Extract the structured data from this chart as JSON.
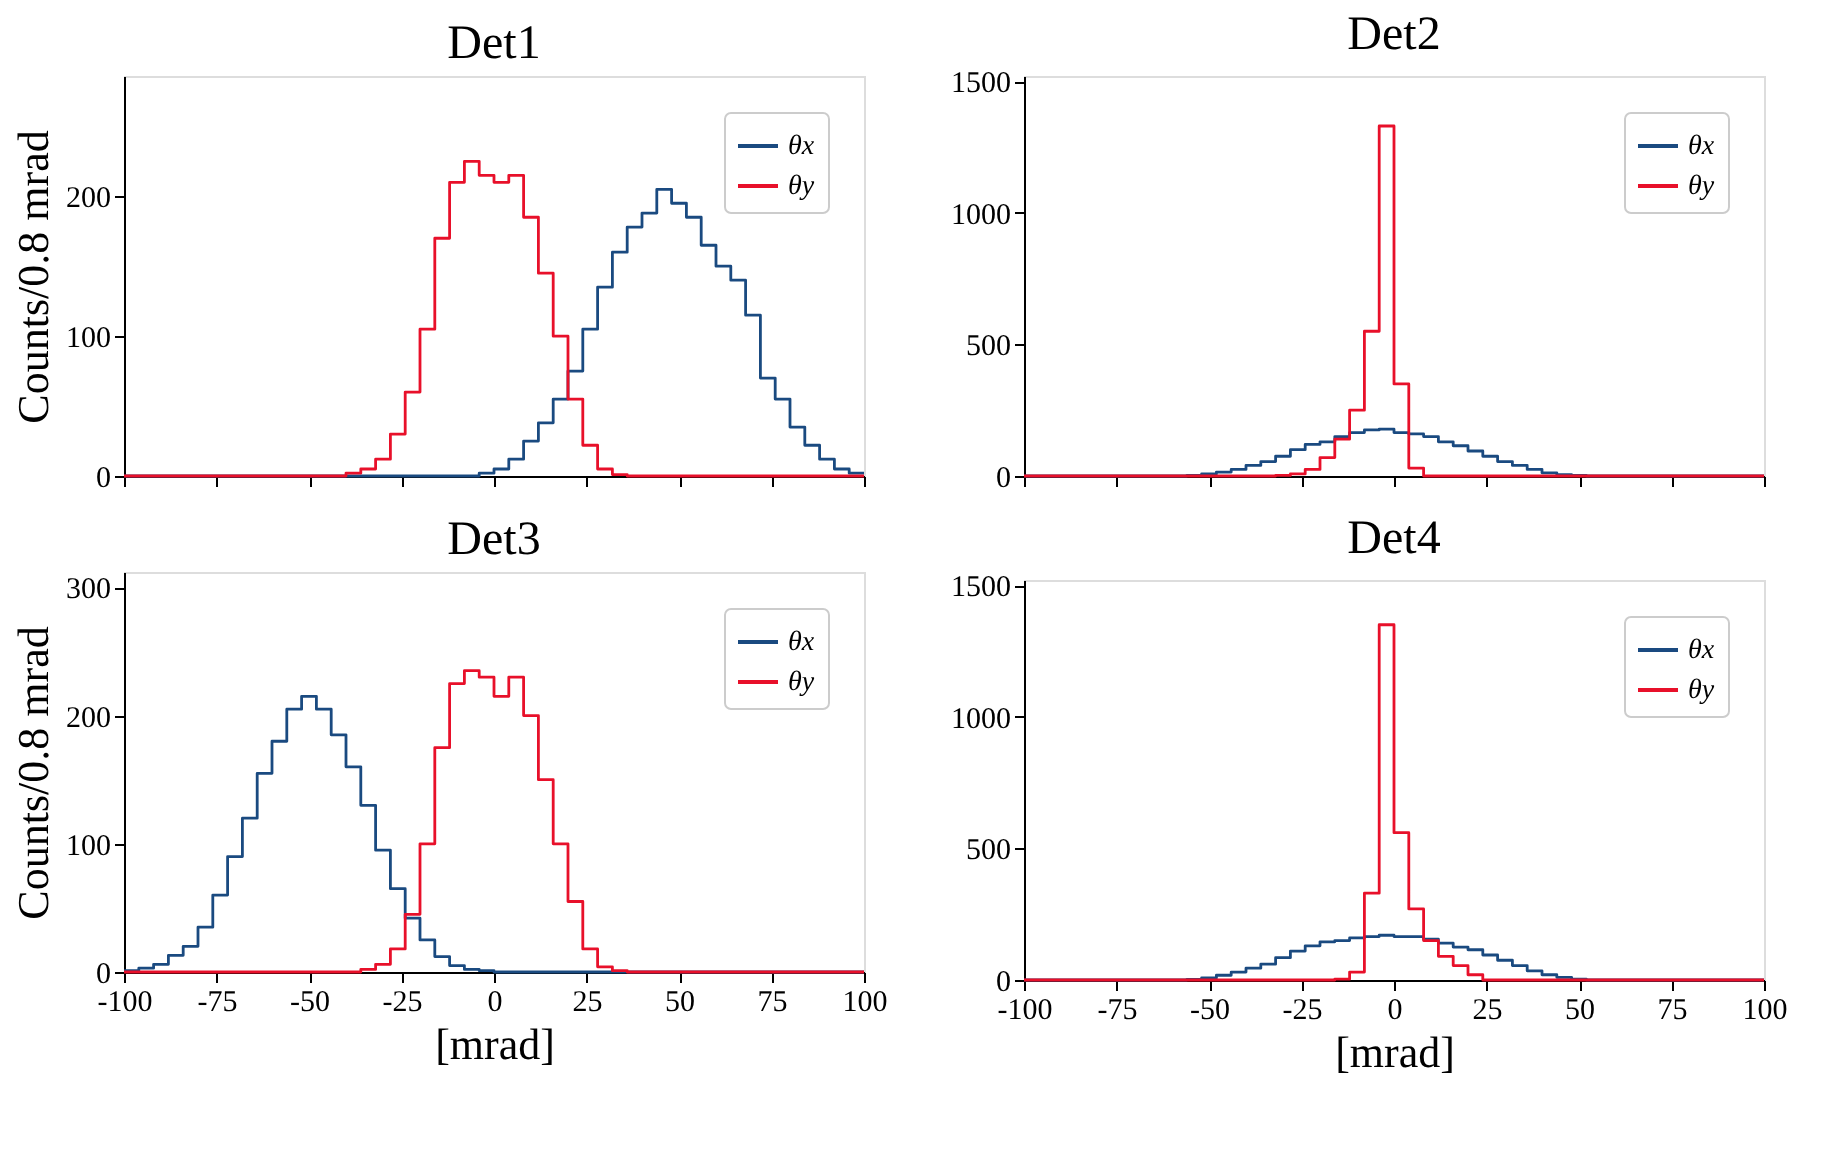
{
  "chart_data": [
    {
      "type": "histogram",
      "title": "Det1",
      "ylabel": "Counts/0.8 mrad",
      "xlim": [
        -100,
        100
      ],
      "xticks": [
        -100,
        -75,
        -50,
        -25,
        0,
        25,
        50,
        75,
        100
      ],
      "ylim": [
        0,
        286
      ],
      "yticks": [
        0,
        100,
        200
      ],
      "tick_labels": "y",
      "legend": "top right",
      "grid": false,
      "bins": [
        -100,
        -96,
        -92,
        -88,
        -84,
        -80,
        -76,
        -72,
        -68,
        -64,
        -60,
        -56,
        -52,
        -48,
        -44,
        -40,
        -36,
        -32,
        -28,
        -24,
        -20,
        -16,
        -12,
        -8,
        -4,
        0,
        4,
        8,
        12,
        16,
        20,
        24,
        28,
        32,
        36,
        40,
        44,
        48,
        52,
        56,
        60,
        64,
        68,
        72,
        76,
        80,
        84,
        88,
        92,
        96,
        100
      ],
      "series": [
        {
          "name": "θx",
          "color": "#1a4a80",
          "values": [
            0,
            0,
            0,
            0,
            0,
            0,
            0,
            0,
            0,
            0,
            0,
            0,
            0,
            0,
            0,
            0,
            0,
            0,
            0,
            0,
            0,
            0,
            0,
            0,
            2,
            5,
            12,
            25,
            38,
            55,
            75,
            105,
            135,
            160,
            178,
            188,
            205,
            195,
            185,
            165,
            150,
            140,
            115,
            70,
            55,
            35,
            22,
            12,
            5,
            2
          ]
        },
        {
          "name": "θy",
          "color": "#e8102a",
          "values": [
            0,
            0,
            0,
            0,
            0,
            0,
            0,
            0,
            0,
            0,
            0,
            0,
            0,
            0,
            0,
            2,
            5,
            12,
            30,
            60,
            105,
            170,
            210,
            225,
            215,
            210,
            215,
            185,
            145,
            100,
            55,
            22,
            5,
            1,
            0,
            0,
            0,
            0,
            0,
            0,
            0,
            0,
            0,
            0,
            0,
            0,
            0,
            0,
            0,
            0
          ]
        }
      ]
    },
    {
      "type": "histogram",
      "title": "Det2",
      "xlim": [
        -100,
        100
      ],
      "xticks": [
        -100,
        -75,
        -50,
        -25,
        0,
        25,
        50,
        75,
        100
      ],
      "ylim": [
        0,
        1520
      ],
      "yticks": [
        0,
        500,
        1000,
        1500
      ],
      "tick_labels": "y",
      "legend": "top right",
      "grid": false,
      "bins": [
        -100,
        -96,
        -92,
        -88,
        -84,
        -80,
        -76,
        -72,
        -68,
        -64,
        -60,
        -56,
        -52,
        -48,
        -44,
        -40,
        -36,
        -32,
        -28,
        -24,
        -20,
        -16,
        -12,
        -8,
        -4,
        0,
        4,
        8,
        12,
        16,
        20,
        24,
        28,
        32,
        36,
        40,
        44,
        48,
        52,
        56,
        60,
        64,
        68,
        72,
        76,
        80,
        84,
        88,
        92,
        96,
        100
      ],
      "series": [
        {
          "name": "θx",
          "color": "#1a4a80",
          "values": [
            0,
            0,
            0,
            0,
            0,
            0,
            0,
            0,
            0,
            0,
            0,
            2,
            8,
            15,
            25,
            40,
            55,
            75,
            100,
            120,
            130,
            150,
            165,
            175,
            178,
            165,
            160,
            150,
            130,
            115,
            95,
            75,
            55,
            40,
            25,
            12,
            5,
            2,
            0,
            0,
            0,
            0,
            0,
            0,
            0,
            0,
            0,
            0,
            0,
            0
          ]
        },
        {
          "name": "θy",
          "color": "#e8102a",
          "values": [
            0,
            0,
            0,
            0,
            0,
            0,
            0,
            0,
            0,
            0,
            0,
            0,
            0,
            0,
            0,
            0,
            0,
            2,
            8,
            25,
            70,
            140,
            250,
            550,
            1330,
            350,
            30,
            0,
            0,
            0,
            0,
            0,
            0,
            0,
            0,
            0,
            0,
            0,
            0,
            0,
            0,
            0,
            0,
            0,
            0,
            0,
            0,
            0,
            0,
            0
          ]
        }
      ]
    },
    {
      "type": "histogram",
      "title": "Det3",
      "xlabel": "[mrad]",
      "ylabel": "Counts/0.8 mrad",
      "xlim": [
        -100,
        100
      ],
      "xticks": [
        -100,
        -75,
        -50,
        -25,
        0,
        25,
        50,
        75,
        100
      ],
      "ylim": [
        0,
        312
      ],
      "yticks": [
        0,
        100,
        200,
        300
      ],
      "legend": "top right",
      "grid": false,
      "bins": [
        -100,
        -96,
        -92,
        -88,
        -84,
        -80,
        -76,
        -72,
        -68,
        -64,
        -60,
        -56,
        -52,
        -48,
        -44,
        -40,
        -36,
        -32,
        -28,
        -24,
        -20,
        -16,
        -12,
        -8,
        -4,
        0,
        4,
        8,
        12,
        16,
        20,
        24,
        28,
        32,
        36,
        40,
        44,
        48,
        52,
        56,
        60,
        64,
        68,
        72,
        76,
        80,
        84,
        88,
        92,
        96,
        100
      ],
      "series": [
        {
          "name": "θx",
          "color": "#1a4a80",
          "values": [
            1,
            3,
            6,
            13,
            20,
            35,
            60,
            90,
            120,
            155,
            180,
            205,
            215,
            205,
            185,
            160,
            130,
            95,
            65,
            42,
            25,
            12,
            5,
            2,
            1,
            0,
            0,
            0,
            0,
            0,
            0,
            0,
            0,
            0,
            0,
            0,
            0,
            0,
            0,
            0,
            0,
            0,
            0,
            0,
            0,
            0,
            0,
            0,
            0,
            0
          ]
        },
        {
          "name": "θy",
          "color": "#e8102a",
          "values": [
            0,
            0,
            0,
            0,
            0,
            0,
            0,
            0,
            0,
            0,
            0,
            0,
            0,
            0,
            0,
            0,
            2,
            6,
            18,
            45,
            100,
            175,
            225,
            235,
            230,
            215,
            230,
            200,
            150,
            100,
            55,
            18,
            4,
            1,
            0,
            0,
            0,
            0,
            0,
            0,
            0,
            0,
            0,
            0,
            0,
            0,
            0,
            0,
            0,
            0
          ]
        }
      ]
    },
    {
      "type": "histogram",
      "title": "Det4",
      "xlabel": "[mrad]",
      "xlim": [
        -100,
        100
      ],
      "xticks": [
        -100,
        -75,
        -50,
        -25,
        0,
        25,
        50,
        75,
        100
      ],
      "ylim": [
        0,
        1520
      ],
      "yticks": [
        0,
        500,
        1000,
        1500
      ],
      "legend": "top right",
      "grid": false,
      "bins": [
        -100,
        -96,
        -92,
        -88,
        -84,
        -80,
        -76,
        -72,
        -68,
        -64,
        -60,
        -56,
        -52,
        -48,
        -44,
        -40,
        -36,
        -32,
        -28,
        -24,
        -20,
        -16,
        -12,
        -8,
        -4,
        0,
        4,
        8,
        12,
        16,
        20,
        24,
        28,
        32,
        36,
        40,
        44,
        48,
        52,
        56,
        60,
        64,
        68,
        72,
        76,
        80,
        84,
        88,
        92,
        96,
        100
      ],
      "series": [
        {
          "name": "θx",
          "color": "#1a4a80",
          "values": [
            0,
            0,
            0,
            0,
            0,
            0,
            0,
            0,
            0,
            0,
            0,
            2,
            8,
            18,
            30,
            45,
            60,
            85,
            110,
            130,
            145,
            150,
            160,
            165,
            170,
            165,
            165,
            155,
            140,
            125,
            115,
            95,
            75,
            55,
            35,
            20,
            10,
            3,
            0,
            0,
            0,
            0,
            0,
            0,
            0,
            0,
            0,
            0,
            0,
            0
          ]
        },
        {
          "name": "θy",
          "color": "#e8102a",
          "values": [
            0,
            0,
            0,
            0,
            0,
            0,
            0,
            0,
            0,
            0,
            0,
            0,
            0,
            0,
            0,
            0,
            0,
            0,
            0,
            0,
            0,
            3,
            30,
            330,
            1350,
            560,
            270,
            150,
            90,
            55,
            20,
            0,
            0,
            0,
            0,
            0,
            0,
            0,
            0,
            0,
            0,
            0,
            0,
            0,
            0,
            0,
            0,
            0,
            0,
            0
          ]
        }
      ]
    }
  ]
}
